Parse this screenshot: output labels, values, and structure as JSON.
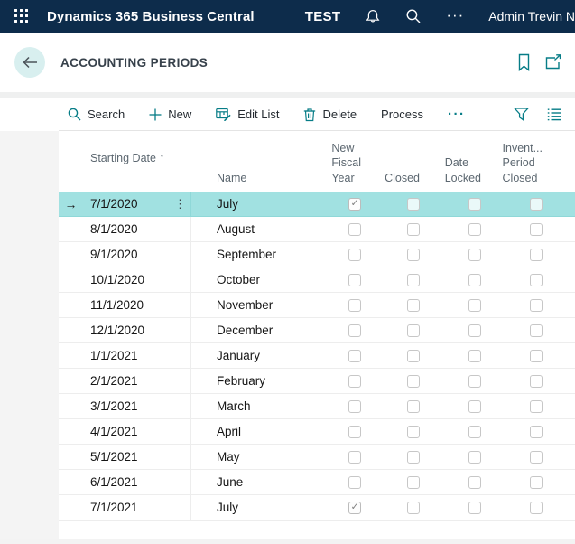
{
  "topbar": {
    "app_title": "Dynamics 365 Business Central",
    "environment_name": "TEST",
    "user_name": "Admin Trevin N",
    "more_label": "···"
  },
  "page_header": {
    "title": "ACCOUNTING PERIODS"
  },
  "toolbar": {
    "search_label": "Search",
    "new_label": "New",
    "edit_list_label": "Edit List",
    "delete_label": "Delete",
    "process_label": "Process",
    "more_label": "···"
  },
  "icons": {
    "selected_row_arrow": "→",
    "row_options": "⋮",
    "checkbox_check": "✓"
  },
  "colors": {
    "topbar_bg": "#0d2c4b",
    "accent": "#077d87",
    "selected_row_bg": "#a1e1e1",
    "back_circle_bg": "#d8efef"
  },
  "table": {
    "columns": [
      {
        "id": "starting_date",
        "label": "Starting Date",
        "sort_indicator": "↑"
      },
      {
        "id": "name",
        "label": "Name"
      },
      {
        "id": "new_fiscal_year",
        "label": "New Fiscal Year"
      },
      {
        "id": "closed",
        "label": "Closed"
      },
      {
        "id": "date_locked",
        "label": "Date Locked"
      },
      {
        "id": "inventory_period_closed",
        "label": "Invent... Period Closed"
      }
    ],
    "rows": [
      {
        "starting_date": "7/1/2020",
        "name": "July",
        "new_fiscal_year": true,
        "closed": false,
        "date_locked": false,
        "inventory_period_closed": false,
        "selected": true
      },
      {
        "starting_date": "8/1/2020",
        "name": "August",
        "new_fiscal_year": false,
        "closed": false,
        "date_locked": false,
        "inventory_period_closed": false,
        "selected": false
      },
      {
        "starting_date": "9/1/2020",
        "name": "September",
        "new_fiscal_year": false,
        "closed": false,
        "date_locked": false,
        "inventory_period_closed": false,
        "selected": false
      },
      {
        "starting_date": "10/1/2020",
        "name": "October",
        "new_fiscal_year": false,
        "closed": false,
        "date_locked": false,
        "inventory_period_closed": false,
        "selected": false
      },
      {
        "starting_date": "11/1/2020",
        "name": "November",
        "new_fiscal_year": false,
        "closed": false,
        "date_locked": false,
        "inventory_period_closed": false,
        "selected": false
      },
      {
        "starting_date": "12/1/2020",
        "name": "December",
        "new_fiscal_year": false,
        "closed": false,
        "date_locked": false,
        "inventory_period_closed": false,
        "selected": false
      },
      {
        "starting_date": "1/1/2021",
        "name": "January",
        "new_fiscal_year": false,
        "closed": false,
        "date_locked": false,
        "inventory_period_closed": false,
        "selected": false
      },
      {
        "starting_date": "2/1/2021",
        "name": "February",
        "new_fiscal_year": false,
        "closed": false,
        "date_locked": false,
        "inventory_period_closed": false,
        "selected": false
      },
      {
        "starting_date": "3/1/2021",
        "name": "March",
        "new_fiscal_year": false,
        "closed": false,
        "date_locked": false,
        "inventory_period_closed": false,
        "selected": false
      },
      {
        "starting_date": "4/1/2021",
        "name": "April",
        "new_fiscal_year": false,
        "closed": false,
        "date_locked": false,
        "inventory_period_closed": false,
        "selected": false
      },
      {
        "starting_date": "5/1/2021",
        "name": "May",
        "new_fiscal_year": false,
        "closed": false,
        "date_locked": false,
        "inventory_period_closed": false,
        "selected": false
      },
      {
        "starting_date": "6/1/2021",
        "name": "June",
        "new_fiscal_year": false,
        "closed": false,
        "date_locked": false,
        "inventory_period_closed": false,
        "selected": false
      },
      {
        "starting_date": "7/1/2021",
        "name": "July",
        "new_fiscal_year": true,
        "closed": false,
        "date_locked": false,
        "inventory_period_closed": false,
        "selected": false
      }
    ]
  }
}
